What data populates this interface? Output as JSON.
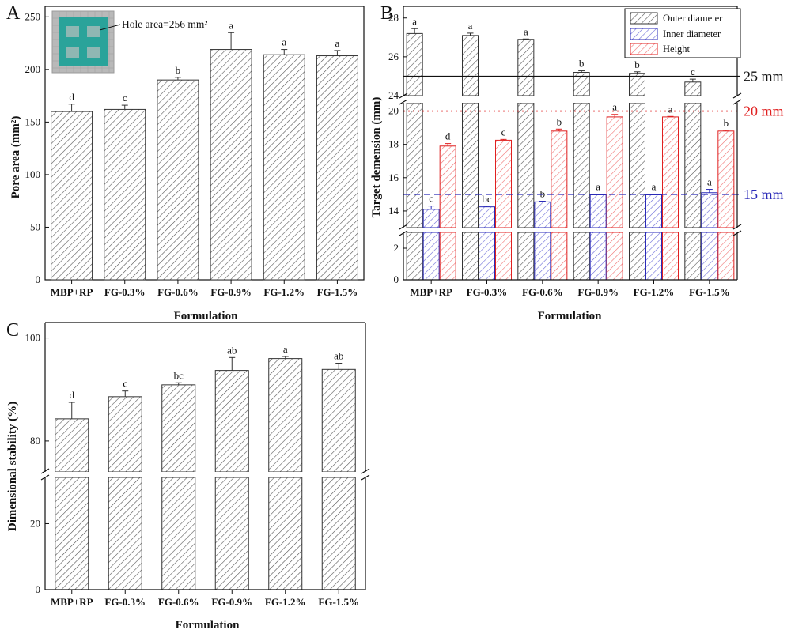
{
  "panels": {
    "A": {
      "letter": "A",
      "ylabel": "Pore area (mm²)"
    },
    "B": {
      "letter": "B",
      "ylabel": "Target demension (mm)"
    },
    "C": {
      "letter": "C",
      "ylabel": "Dimensional stability (%)"
    }
  },
  "inset": {
    "annotation": "Hole area=256 mm²"
  },
  "reference_lines": [
    {
      "value": 25,
      "label": "25 mm",
      "color": "#111111",
      "style": "solid"
    },
    {
      "value": 20,
      "label": "20 mm",
      "color": "#e02020",
      "style": "dotted"
    },
    {
      "value": 15,
      "label": "15 mm",
      "color": "#2a2ab8",
      "style": "dashed"
    }
  ],
  "chart_data": [
    {
      "type": "bar",
      "panel": "A",
      "title": "",
      "xlabel": "Formulation",
      "ylabel": "Pore area (mm²)",
      "categories": [
        "MBP+RP",
        "FG-0.3%",
        "FG-0.6%",
        "FG-0.9%",
        "FG-1.2%",
        "FG-1.5%"
      ],
      "values": [
        160,
        162,
        190,
        219,
        214,
        213
      ],
      "errors": [
        7,
        4,
        2.5,
        16,
        5,
        5
      ],
      "significance": [
        "d",
        "c",
        "b",
        "a",
        "a",
        "a"
      ],
      "ylim": [
        0,
        260
      ],
      "yticks": [
        0,
        50,
        100,
        150,
        200,
        250
      ],
      "grid": false,
      "colors": {
        "bar_stroke": "#333333"
      }
    },
    {
      "type": "bar",
      "panel": "B",
      "title": "",
      "xlabel": "Formulation",
      "ylabel": "Target demension (mm)",
      "categories": [
        "MBP+RP",
        "FG-0.3%",
        "FG-0.6%",
        "FG-0.9%",
        "FG-1.2%",
        "FG-1.5%"
      ],
      "series": [
        {
          "name": "Outer diameter",
          "values": [
            27.2,
            27.1,
            26.9,
            25.2,
            25.15,
            24.7
          ],
          "errors": [
            0.25,
            0.12,
            0.02,
            0.08,
            0.08,
            0.15
          ],
          "significance": [
            "a",
            "a",
            "a",
            "b",
            "b",
            "c"
          ],
          "color": "#333333"
        },
        {
          "name": "Inner diameter",
          "values": [
            14.1,
            14.25,
            14.55,
            14.97,
            14.97,
            15.1
          ],
          "errors": [
            0.2,
            0.04,
            0.04,
            0.04,
            0.04,
            0.2
          ],
          "significance": [
            "c",
            "bc",
            "b",
            "a",
            "a",
            "a"
          ],
          "color": "#2a2ab8"
        },
        {
          "name": "Height",
          "values": [
            17.9,
            18.25,
            18.8,
            19.65,
            19.65,
            18.8
          ],
          "errors": [
            0.15,
            0.05,
            0.12,
            0.15,
            0.03,
            0.05
          ],
          "significance": [
            "d",
            "c",
            "b",
            "a",
            "a",
            "b"
          ],
          "color": "#e02020"
        }
      ],
      "axis_break_segments": [
        [
          0,
          3
        ],
        [
          13,
          20.5
        ],
        [
          24,
          28.6
        ]
      ],
      "ylim": [
        0,
        28.6
      ],
      "yticks": [
        0,
        2,
        14,
        16,
        18,
        20,
        24,
        26,
        28
      ],
      "legend": "top-right",
      "grid": false
    },
    {
      "type": "bar",
      "panel": "C",
      "title": "",
      "xlabel": "Formulation",
      "ylabel": "Dimensional stability (%)",
      "categories": [
        "MBP+RP",
        "FG-0.3%",
        "FG-0.6%",
        "FG-0.9%",
        "FG-1.2%",
        "FG-1.5%"
      ],
      "values": [
        84.3,
        88.6,
        90.9,
        93.7,
        96.0,
        93.9
      ],
      "errors": [
        3.2,
        1.1,
        0.4,
        2.5,
        0.4,
        1.2
      ],
      "significance": [
        "d",
        "c",
        "bc",
        "ab",
        "a",
        "ab"
      ],
      "axis_break_segments": [
        [
          0,
          34
        ],
        [
          74,
          103
        ]
      ],
      "ylim": [
        0,
        103
      ],
      "yticks": [
        0,
        20,
        80,
        100
      ],
      "grid": false
    }
  ]
}
